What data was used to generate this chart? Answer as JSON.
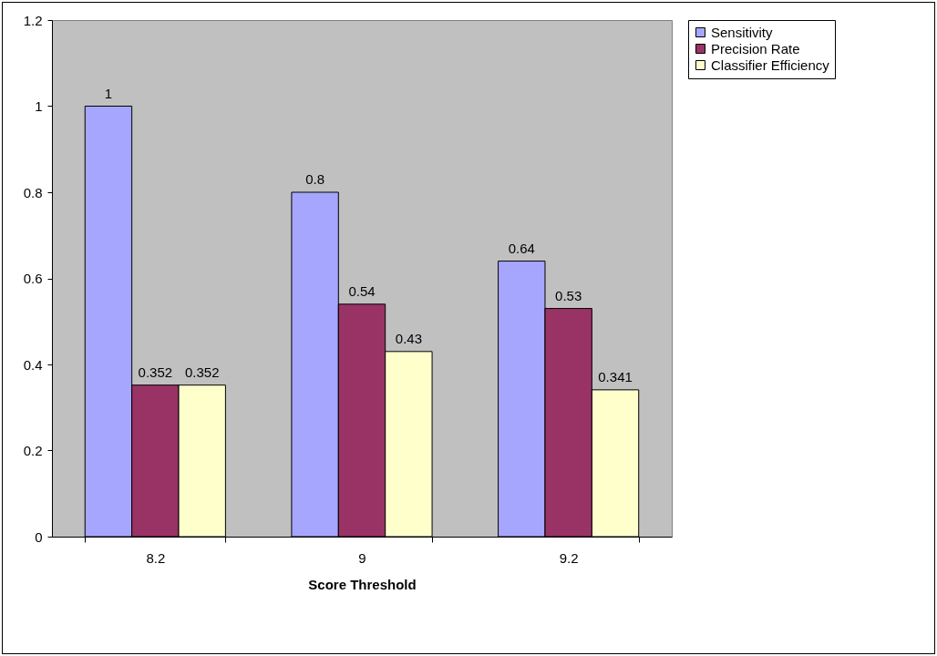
{
  "chart_data": {
    "type": "bar",
    "xlabel": "Score Threshold",
    "categories": [
      "8.2",
      "9",
      "9.2"
    ],
    "series": [
      {
        "name": "Sensitivity",
        "color": "#a6a6ff",
        "values": [
          1,
          0.8,
          0.64
        ]
      },
      {
        "name": "Precision Rate",
        "color": "#993366",
        "values": [
          0.352,
          0.54,
          0.53
        ]
      },
      {
        "name": "Classifier Efficiency",
        "color": "#ffffcc",
        "values": [
          0.352,
          0.43,
          0.341
        ]
      }
    ],
    "ylim": [
      0,
      1.2
    ],
    "yticks": [
      0,
      0.2,
      0.4,
      0.6,
      0.8,
      1,
      1.2
    ],
    "grid": false,
    "legend": "right",
    "data_labels": true
  }
}
